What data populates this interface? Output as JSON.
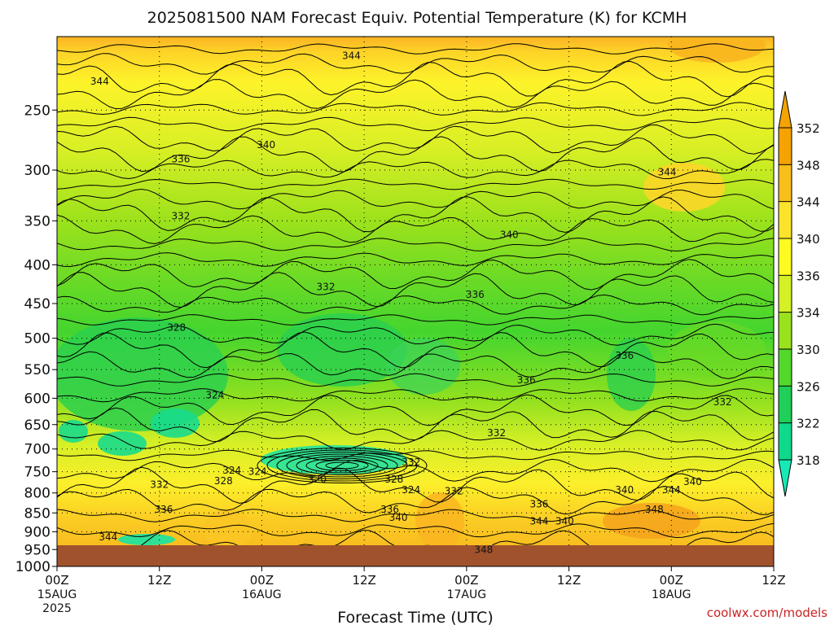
{
  "chart_data": {
    "type": "heatmap",
    "title": "2025081500 NAM Forecast Equiv. Potential Temperature (K) for KCMH",
    "xlabel": "Forecast Time (UTC)",
    "ylabel": "",
    "x_ticks": [
      {
        "hours": 0,
        "label": "00Z",
        "sub": "15AUG",
        "sub2": "2025"
      },
      {
        "hours": 12,
        "label": "12Z",
        "sub": "",
        "sub2": ""
      },
      {
        "hours": 24,
        "label": "00Z",
        "sub": "16AUG",
        "sub2": ""
      },
      {
        "hours": 36,
        "label": "12Z",
        "sub": "",
        "sub2": ""
      },
      {
        "hours": 48,
        "label": "00Z",
        "sub": "17AUG",
        "sub2": ""
      },
      {
        "hours": 60,
        "label": "12Z",
        "sub": "",
        "sub2": ""
      },
      {
        "hours": 72,
        "label": "00Z",
        "sub": "18AUG",
        "sub2": ""
      },
      {
        "hours": 84,
        "label": "12Z",
        "sub": "",
        "sub2": ""
      }
    ],
    "x_range": [
      0,
      84
    ],
    "y_ticks": [
      250,
      300,
      350,
      400,
      450,
      500,
      550,
      600,
      650,
      700,
      750,
      800,
      850,
      900,
      950,
      1000
    ],
    "y_range": [
      200,
      1000
    ],
    "y_scale": "log-pressure",
    "grid": true,
    "colorbar": {
      "labels": [
        352,
        348,
        344,
        340,
        336,
        334,
        330,
        326,
        322,
        318
      ],
      "colors": [
        "#f4a300",
        "#f8bf1a",
        "#fce32b",
        "#fdfb20",
        "#d4f026",
        "#9ae21e",
        "#53d82c",
        "#1fcf58",
        "#10d98c",
        "#16e9b6"
      ]
    },
    "contour_labels": [
      {
        "t": 34.5,
        "p": 212,
        "v": "344"
      },
      {
        "t": 5,
        "p": 229,
        "v": "344"
      },
      {
        "t": 24.5,
        "p": 278,
        "v": "340"
      },
      {
        "t": 14.5,
        "p": 290,
        "v": "336"
      },
      {
        "t": 71.5,
        "p": 302,
        "v": "344"
      },
      {
        "t": 14.5,
        "p": 345,
        "v": "332"
      },
      {
        "t": 53,
        "p": 365,
        "v": "340"
      },
      {
        "t": 31.5,
        "p": 428,
        "v": "332"
      },
      {
        "t": 49,
        "p": 438,
        "v": "336"
      },
      {
        "t": 14,
        "p": 484,
        "v": "328"
      },
      {
        "t": 66.5,
        "p": 527,
        "v": "336"
      },
      {
        "t": 55,
        "p": 568,
        "v": "336"
      },
      {
        "t": 18.5,
        "p": 594,
        "v": "324"
      },
      {
        "t": 78,
        "p": 607,
        "v": "332"
      },
      {
        "t": 51.5,
        "p": 667,
        "v": "332"
      },
      {
        "t": 41.5,
        "p": 729,
        "v": "332"
      },
      {
        "t": 20.5,
        "p": 747,
        "v": "324"
      },
      {
        "t": 23.5,
        "p": 750,
        "v": "324"
      },
      {
        "t": 30.5,
        "p": 768,
        "v": "320"
      },
      {
        "t": 19.5,
        "p": 771,
        "v": "328"
      },
      {
        "t": 12,
        "p": 780,
        "v": "332"
      },
      {
        "t": 39.5,
        "p": 768,
        "v": "328"
      },
      {
        "t": 41.5,
        "p": 793,
        "v": "324"
      },
      {
        "t": 46.5,
        "p": 796,
        "v": "332"
      },
      {
        "t": 66.5,
        "p": 793,
        "v": "340"
      },
      {
        "t": 72,
        "p": 793,
        "v": "344"
      },
      {
        "t": 74.5,
        "p": 773,
        "v": "340"
      },
      {
        "t": 12.5,
        "p": 841,
        "v": "336"
      },
      {
        "t": 39,
        "p": 841,
        "v": "336"
      },
      {
        "t": 40,
        "p": 862,
        "v": "340"
      },
      {
        "t": 56.5,
        "p": 828,
        "v": "336"
      },
      {
        "t": 70,
        "p": 841,
        "v": "348"
      },
      {
        "t": 56.5,
        "p": 872,
        "v": "344"
      },
      {
        "t": 59.5,
        "p": 872,
        "v": "340"
      },
      {
        "t": 6,
        "p": 915,
        "v": "344"
      },
      {
        "t": 50,
        "p": 950,
        "v": "348"
      }
    ]
  },
  "footer": {
    "credit": "coolwx.com/models"
  }
}
